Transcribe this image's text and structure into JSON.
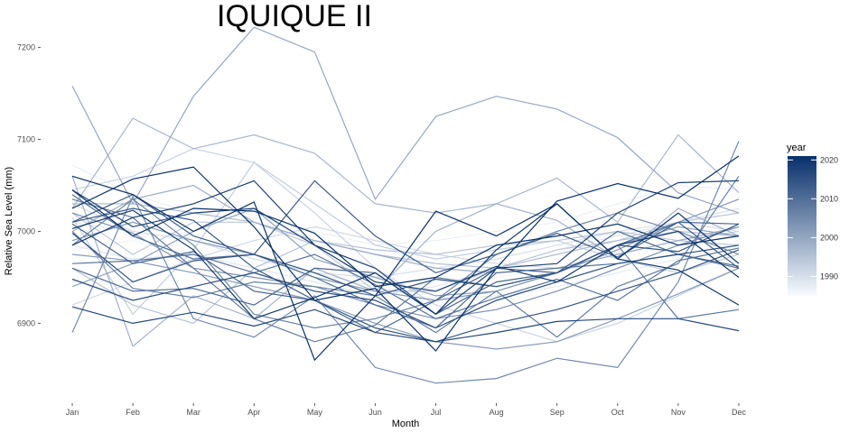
{
  "chart_data": {
    "type": "line",
    "title": "IQUIQUE II",
    "xlabel": "Month",
    "ylabel": "Relative Sea Level (mm)",
    "categories": [
      "Jan",
      "Feb",
      "Mar",
      "Apr",
      "May",
      "Jun",
      "Jul",
      "Aug",
      "Sep",
      "Oct",
      "Nov",
      "Dec"
    ],
    "yticks": [
      6900,
      7000,
      7100,
      7200
    ],
    "ylim": [
      6820,
      7232
    ],
    "grid": false,
    "legend": {
      "title": "year",
      "position": "right",
      "ticks": [
        1990,
        2000,
        2010,
        2020
      ],
      "range": [
        1985,
        2021
      ],
      "color_low": "#f7fbff",
      "color_high": "#08306b"
    },
    "series": [
      {
        "year": 1986,
        "values": [
          6980,
          6990,
          6975,
          6965,
          6950,
          6935,
          6945,
          6950,
          6960,
          6975,
          6990,
          7000
        ]
      },
      {
        "year": 1987,
        "values": [
          7072,
          7040,
          7020,
          7015,
          7000,
          6985,
          6990,
          7000,
          7010,
          7030,
          7050,
          7045
        ]
      },
      {
        "year": 1988,
        "values": [
          7010,
          7000,
          6990,
          6970,
          6955,
          6940,
          6925,
          6930,
          6940,
          6955,
          6970,
          6985
        ]
      },
      {
        "year": 1989,
        "values": [
          6985,
          6970,
          6975,
          6960,
          6945,
          6930,
          6940,
          6960,
          6980,
          6995,
          7010,
          7025
        ]
      },
      {
        "year": 1990,
        "values": [
          7030,
          7000,
          6990,
          6970,
          6955,
          6950,
          6960,
          6970,
          6985,
          7000,
          7010,
          7000
        ]
      },
      {
        "year": 1991,
        "values": [
          6920,
          6945,
          6970,
          6990,
          7005,
          6990,
          6975,
          6965,
          6960,
          6975,
          6990,
          7000
        ]
      },
      {
        "year": 1992,
        "values": [
          7045,
          7060,
          7090,
          7075,
          7020,
          6960,
          6920,
          6900,
          6880,
          6900,
          6930,
          6960
        ]
      },
      {
        "year": 1993,
        "values": [
          7015,
          6910,
          6980,
          7075,
          7030,
          6985,
          6970,
          6980,
          6990,
          6970,
          6955,
          6975
        ]
      },
      {
        "year": 1994,
        "values": [
          7020,
          6975,
          7010,
          7010,
          6985,
          6935,
          6935,
          6960,
          6980,
          6990,
          7010,
          7020
        ]
      },
      {
        "year": 1995,
        "values": [
          6960,
          6920,
          6900,
          6960,
          6990,
          6980,
          6975,
          6985,
          6990,
          7000,
          6990,
          6985
        ]
      },
      {
        "year": 1996,
        "values": [
          7030,
          7030,
          7020,
          7010,
          6990,
          6975,
          6965,
          6960,
          6975,
          6990,
          7000,
          6995
        ]
      },
      {
        "year": 1997,
        "values": [
          7025,
          7123,
          7090,
          7105,
          7085,
          7030,
          7020,
          7030,
          7058,
          7010,
          7105,
          7042
        ]
      },
      {
        "year": 1998,
        "values": [
          7060,
          6875,
          6930,
          6905,
          6960,
          6935,
          7000,
          7030,
          7012,
          6970,
          7025,
          6995
        ]
      },
      {
        "year": 1999,
        "values": [
          7000,
          7035,
          7050,
          7010,
          6990,
          6975,
          6960,
          6955,
          6960,
          6975,
          6990,
          7005
        ]
      },
      {
        "year": 2000,
        "values": [
          7158,
          7030,
          7147,
          7222,
          7195,
          7035,
          7125,
          7147,
          7133,
          7102,
          7042,
          7020
        ]
      },
      {
        "year": 2001,
        "values": [
          6940,
          6965,
          7000,
          7025,
          6970,
          6950,
          6930,
          6935,
          6955,
          6985,
          7005,
          6995
        ]
      },
      {
        "year": 2002,
        "values": [
          6975,
          6968,
          6955,
          6940,
          6925,
          6900,
          6880,
          6872,
          6880,
          6905,
          6932,
          6960
        ]
      },
      {
        "year": 2003,
        "values": [
          6990,
          7010,
          6990,
          6975,
          6950,
          6935,
          6925,
          6935,
          6955,
          6980,
          7010,
          7035
        ]
      },
      {
        "year": 2004,
        "values": [
          7020,
          6998,
          6960,
          6950,
          6940,
          6920,
          6905,
          6915,
          6935,
          6960,
          6985,
          7005
        ]
      },
      {
        "year": 2005,
        "values": [
          6890,
          7038,
          6905,
          6885,
          6930,
          6852,
          6835,
          6840,
          6862,
          6852,
          6945,
          7098
        ]
      },
      {
        "year": 2006,
        "values": [
          6985,
          7035,
          6985,
          6910,
          6895,
          6905,
          6925,
          6975,
          7000,
          7020,
          7000,
          6975
        ]
      },
      {
        "year": 2007,
        "values": [
          7000,
          6938,
          6928,
          6945,
          6940,
          6930,
          6890,
          6935,
          6885,
          6940,
          6965,
          7060
        ]
      },
      {
        "year": 2008,
        "values": [
          7035,
          7015,
          6960,
          6905,
          6880,
          6898,
          6950,
          6940,
          6955,
          6985,
          6905,
          6915
        ]
      },
      {
        "year": 2009,
        "values": [
          6965,
          6968,
          6975,
          6955,
          6975,
          6942,
          6905,
          6928,
          6948,
          6925,
          6968,
          6982
        ]
      },
      {
        "year": 2010,
        "values": [
          7040,
          6995,
          6970,
          6975,
          6950,
          6920,
          6895,
          6955,
          6960,
          6965,
          6975,
          6960
        ]
      },
      {
        "year": 2011,
        "values": [
          6960,
          6935,
          6938,
          6920,
          6960,
          6955,
          6910,
          6945,
          6955,
          6985,
          7010,
          7008
        ]
      },
      {
        "year": 2012,
        "values": [
          7008,
          6965,
          6978,
          6935,
          6925,
          6890,
          6925,
          6960,
          6955,
          7000,
          6975,
          6962
        ]
      },
      {
        "year": 2013,
        "values": [
          7010,
          7040,
          6995,
          6975,
          7055,
          6995,
          6955,
          6975,
          6998,
          6972,
          7010,
          6960
        ]
      },
      {
        "year": 2014,
        "values": [
          7010,
          7025,
          7012,
          6960,
          6925,
          6895,
          6880,
          6900,
          6915,
          6935,
          6955,
          6980
        ]
      },
      {
        "year": 2015,
        "values": [
          6998,
          6945,
          6968,
          6975,
          6955,
          6930,
          6948,
          6940,
          6955,
          6985,
          6978,
          7008
        ]
      },
      {
        "year": 2016,
        "values": [
          6948,
          6925,
          6940,
          6955,
          6935,
          6925,
          6895,
          6925,
          6945,
          6965,
          6975,
          6985
        ]
      },
      {
        "year": 2017,
        "values": [
          6918,
          6900,
          6912,
          6897,
          6915,
          6890,
          6880,
          6890,
          6902,
          6905,
          6905,
          6892
        ]
      },
      {
        "year": 2018,
        "values": [
          7045,
          7005,
          7020,
          7025,
          6985,
          6960,
          6910,
          6960,
          6965,
          7020,
          7053,
          7055
        ]
      },
      {
        "year": 2019,
        "values": [
          6985,
          7015,
          7030,
          7055,
          6985,
          6945,
          6935,
          6962,
          6945,
          6985,
          7000,
          6950
        ]
      },
      {
        "year": 2020,
        "values": [
          7003,
          7023,
          6980,
          6905,
          6928,
          6955,
          6910,
          6980,
          7030,
          6970,
          6958,
          6920
        ]
      },
      {
        "year": 2021,
        "values": [
          7025,
          7057,
          7070,
          7005,
          6925,
          6938,
          6870,
          6960,
          7033,
          7052,
          7036,
          7082
        ]
      },
      {
        "year": 2022,
        "values": [
          7060,
          7040,
          7000,
          7032,
          6860,
          6930,
          7022,
          6995,
          7030,
          6970,
          7020,
          6965
        ]
      },
      {
        "year": 2023,
        "values": [
          7045,
          6995,
          7025,
          7022,
          6998,
          6940,
          6950,
          6985,
          6995,
          7008,
          6985,
          6995
        ]
      }
    ]
  }
}
